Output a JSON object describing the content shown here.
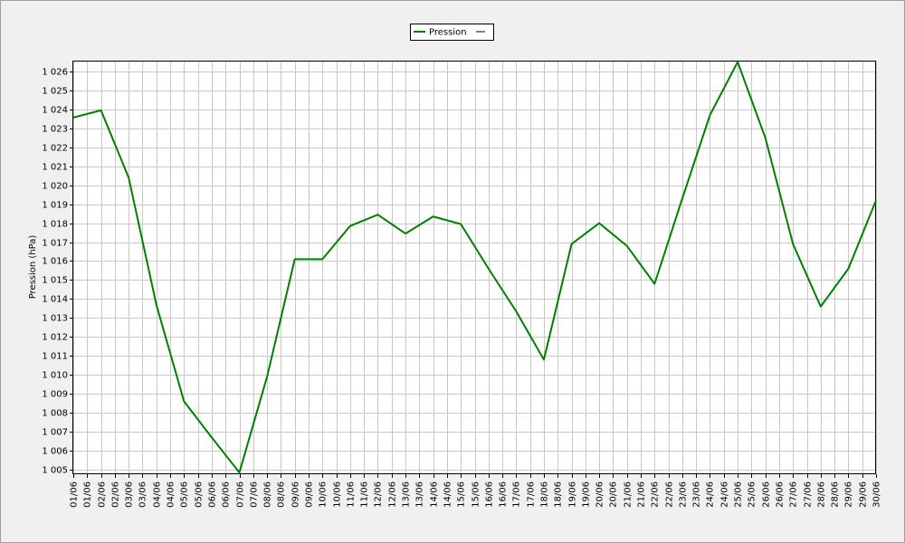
{
  "chart_data": {
    "type": "line",
    "y_label": "Pression (hPa)",
    "x": [
      1,
      2,
      3,
      4,
      5,
      6,
      7,
      8,
      9,
      10,
      11,
      12,
      13,
      14,
      15,
      16,
      17,
      18,
      19,
      20,
      21,
      22,
      23,
      24,
      25,
      26,
      27,
      28,
      29,
      30
    ],
    "series": [
      {
        "name": "Pression",
        "color": "#008000",
        "values": [
          1023.57,
          1023.95,
          1020.4,
          1013.7,
          1008.6,
          1006.7,
          1004.85,
          1009.9,
          1016.1,
          1016.1,
          1017.85,
          1018.45,
          1017.45,
          1018.35,
          1017.95,
          1015.6,
          1013.35,
          1010.8,
          1016.9,
          1018.0,
          1016.8,
          1014.8,
          1019.3,
          1023.7,
          1026.5,
          1022.5,
          1016.9,
          1013.6,
          1015.6,
          1019.2
        ]
      }
    ],
    "xlim": [
      1,
      30
    ],
    "xticks": [
      {
        "value": 1,
        "label": "01/06"
      },
      {
        "value": 1.5,
        "label": "01/06"
      },
      {
        "value": 2,
        "label": "02/06"
      },
      {
        "value": 2.5,
        "label": "02/06"
      },
      {
        "value": 3,
        "label": "03/06"
      },
      {
        "value": 3.5,
        "label": "03/06"
      },
      {
        "value": 4,
        "label": "04/06"
      },
      {
        "value": 4.5,
        "label": "04/06"
      },
      {
        "value": 5,
        "label": "05/06"
      },
      {
        "value": 5.5,
        "label": "05/06"
      },
      {
        "value": 6,
        "label": "06/06"
      },
      {
        "value": 6.5,
        "label": "06/06"
      },
      {
        "value": 7,
        "label": "07/06"
      },
      {
        "value": 7.5,
        "label": "07/06"
      },
      {
        "value": 8,
        "label": "08/06"
      },
      {
        "value": 8.5,
        "label": "08/06"
      },
      {
        "value": 9,
        "label": "09/06"
      },
      {
        "value": 9.5,
        "label": "09/06"
      },
      {
        "value": 10,
        "label": "10/06"
      },
      {
        "value": 10.5,
        "label": "10/06"
      },
      {
        "value": 11,
        "label": "11/06"
      },
      {
        "value": 11.5,
        "label": "11/06"
      },
      {
        "value": 12,
        "label": "12/06"
      },
      {
        "value": 12.5,
        "label": "12/06"
      },
      {
        "value": 13,
        "label": "13/06"
      },
      {
        "value": 13.5,
        "label": "13/06"
      },
      {
        "value": 14,
        "label": "14/06"
      },
      {
        "value": 14.5,
        "label": "14/06"
      },
      {
        "value": 15,
        "label": "15/06"
      },
      {
        "value": 15.5,
        "label": "15/06"
      },
      {
        "value": 16,
        "label": "16/06"
      },
      {
        "value": 16.5,
        "label": "16/06"
      },
      {
        "value": 17,
        "label": "17/06"
      },
      {
        "value": 17.5,
        "label": "17/06"
      },
      {
        "value": 18,
        "label": "18/06"
      },
      {
        "value": 18.5,
        "label": "18/06"
      },
      {
        "value": 19,
        "label": "19/06"
      },
      {
        "value": 19.5,
        "label": "19/06"
      },
      {
        "value": 20,
        "label": "20/06"
      },
      {
        "value": 20.5,
        "label": "20/06"
      },
      {
        "value": 21,
        "label": "21/06"
      },
      {
        "value": 21.5,
        "label": "21/06"
      },
      {
        "value": 22,
        "label": "22/06"
      },
      {
        "value": 22.5,
        "label": "22/06"
      },
      {
        "value": 23,
        "label": "23/06"
      },
      {
        "value": 23.5,
        "label": "23/06"
      },
      {
        "value": 24,
        "label": "24/06"
      },
      {
        "value": 24.5,
        "label": "24/06"
      },
      {
        "value": 25,
        "label": "25/06"
      },
      {
        "value": 25.5,
        "label": "25/06"
      },
      {
        "value": 26,
        "label": "26/06"
      },
      {
        "value": 26.5,
        "label": "26/06"
      },
      {
        "value": 27,
        "label": "27/06"
      },
      {
        "value": 27.5,
        "label": "27/06"
      },
      {
        "value": 28,
        "label": "28/06"
      },
      {
        "value": 28.5,
        "label": "28/06"
      },
      {
        "value": 29,
        "label": "29/06"
      },
      {
        "value": 29.5,
        "label": "29/06"
      },
      {
        "value": 30,
        "label": "30/06"
      }
    ],
    "ylim": [
      1004.76,
      1026.57
    ],
    "yticks": [
      {
        "value": 1005,
        "label": "1 005"
      },
      {
        "value": 1006,
        "label": "1 006"
      },
      {
        "value": 1007,
        "label": "1 007"
      },
      {
        "value": 1008,
        "label": "1 008"
      },
      {
        "value": 1009,
        "label": "1 009"
      },
      {
        "value": 1010,
        "label": "1 010"
      },
      {
        "value": 1011,
        "label": "1 011"
      },
      {
        "value": 1012,
        "label": "1 012"
      },
      {
        "value": 1013,
        "label": "1 013"
      },
      {
        "value": 1014,
        "label": "1 014"
      },
      {
        "value": 1015,
        "label": "1 015"
      },
      {
        "value": 1016,
        "label": "1 016"
      },
      {
        "value": 1017,
        "label": "1 017"
      },
      {
        "value": 1018,
        "label": "1 018"
      },
      {
        "value": 1019,
        "label": "1 019"
      },
      {
        "value": 1020,
        "label": "1 020"
      },
      {
        "value": 1021,
        "label": "1 021"
      },
      {
        "value": 1022,
        "label": "1 022"
      },
      {
        "value": 1023,
        "label": "1 023"
      },
      {
        "value": 1024,
        "label": "1 024"
      },
      {
        "value": 1025,
        "label": "1 025"
      },
      {
        "value": 1026,
        "label": "1 026"
      }
    ],
    "grid": true,
    "legend": "top"
  }
}
